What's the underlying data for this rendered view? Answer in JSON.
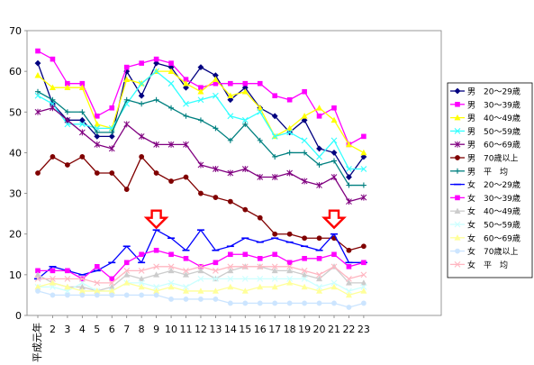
{
  "chart_data": {
    "type": "line",
    "x": [
      "平成元年",
      "2",
      "3",
      "4",
      "5",
      "6",
      "7",
      "8",
      "9",
      "10",
      "11",
      "12",
      "13",
      "14",
      "15",
      "16",
      "17",
      "18",
      "19",
      "20",
      "21",
      "22",
      "23"
    ],
    "ylim": [
      0,
      70
    ],
    "yticks": [
      0,
      10,
      20,
      30,
      40,
      50,
      60,
      70
    ],
    "grid": false,
    "legend_position": "right",
    "series": [
      {
        "name": "男　20～29歳",
        "color": "#000080",
        "marker": "diamond",
        "values": [
          62,
          52,
          48,
          48,
          44,
          44,
          60,
          54,
          62,
          61,
          56,
          61,
          59,
          53,
          56,
          51,
          49,
          45,
          48,
          41,
          40,
          34,
          39
        ]
      },
      {
        "name": "男　30～39歳",
        "color": "#ff00ff",
        "marker": "square",
        "values": [
          65,
          63,
          57,
          57,
          49,
          51,
          61,
          62,
          63,
          62,
          58,
          56,
          57,
          57,
          57,
          57,
          54,
          53,
          55,
          49,
          51,
          42,
          44
        ]
      },
      {
        "name": "男　40～49歳",
        "color": "#ffff00",
        "marker": "triangle",
        "values": [
          59,
          56,
          56,
          56,
          47,
          46,
          58,
          57,
          60,
          60,
          57,
          55,
          58,
          54,
          55,
          51,
          44,
          46,
          49,
          51,
          48,
          42,
          40
        ]
      },
      {
        "name": "男　50～59歳",
        "color": "#33ffff",
        "marker": "x",
        "values": [
          54,
          52,
          47,
          47,
          46,
          46,
          52,
          57,
          60,
          57,
          52,
          53,
          54,
          49,
          48,
          50,
          44,
          45,
          43,
          39,
          43,
          36,
          36
        ]
      },
      {
        "name": "男　60～69歳",
        "color": "#800080",
        "marker": "star",
        "values": [
          50,
          51,
          48,
          45,
          42,
          41,
          47,
          44,
          42,
          42,
          42,
          37,
          36,
          35,
          36,
          34,
          34,
          35,
          33,
          32,
          34,
          28,
          29
        ]
      },
      {
        "name": "男　70歳以上",
        "color": "#800000",
        "marker": "circle",
        "values": [
          35,
          39,
          37,
          39,
          35,
          35,
          31,
          39,
          35,
          33,
          34,
          30,
          29,
          28,
          26,
          24,
          20,
          20,
          19,
          19,
          19,
          16,
          17
        ]
      },
      {
        "name": "男　平　均",
        "color": "#008080",
        "marker": "plus",
        "values": [
          55,
          53,
          50,
          50,
          45,
          45,
          53,
          52,
          53,
          51,
          49,
          48,
          46,
          43,
          47,
          43,
          39,
          40,
          40,
          37,
          38,
          32,
          32
        ]
      },
      {
        "name": "女　20～29歳",
        "color": "#0000ff",
        "marker": "dash",
        "values": [
          9,
          12,
          11,
          10,
          11,
          13,
          17,
          13,
          21,
          19,
          16,
          21,
          16,
          17,
          19,
          18,
          19,
          18,
          17,
          16,
          20,
          13,
          13
        ]
      },
      {
        "name": "女　30～39歳",
        "color": "#ff00ff",
        "marker": "square",
        "values": [
          11,
          11,
          11,
          9,
          12,
          9,
          13,
          15,
          16,
          15,
          14,
          12,
          13,
          15,
          15,
          14,
          15,
          13,
          14,
          14,
          15,
          12,
          13
        ]
      },
      {
        "name": "女　40～49歳",
        "color": "#cccccc",
        "marker": "triangle",
        "values": [
          10,
          8,
          7,
          7,
          6,
          7,
          10,
          9,
          10,
          11,
          10,
          11,
          9,
          11,
          12,
          12,
          11,
          11,
          10,
          9,
          12,
          8,
          8
        ]
      },
      {
        "name": "女　50～59歳",
        "color": "#ccffff",
        "marker": "x",
        "values": [
          7,
          7,
          6,
          8,
          6,
          6,
          8,
          8,
          7,
          8,
          7,
          9,
          9,
          9,
          9,
          9,
          9,
          9,
          9,
          7,
          8,
          6,
          7
        ]
      },
      {
        "name": "女　60～69歳",
        "color": "#ffff99",
        "marker": "triangle",
        "values": [
          7,
          8,
          7,
          6,
          6,
          6,
          8,
          7,
          6,
          7,
          6,
          6,
          6,
          7,
          6,
          7,
          7,
          8,
          7,
          6,
          7,
          5,
          6
        ]
      },
      {
        "name": "女　70歳以上",
        "color": "#cce5ff",
        "marker": "circle",
        "values": [
          6,
          5,
          5,
          5,
          5,
          5,
          5,
          5,
          5,
          4,
          4,
          4,
          4,
          3,
          3,
          3,
          3,
          3,
          3,
          3,
          3,
          2,
          3
        ]
      },
      {
        "name": "女　平　均",
        "color": "#ffb6c1",
        "marker": "x",
        "values": [
          9,
          9,
          9,
          9,
          8,
          8,
          11,
          11,
          12,
          12,
          11,
          12,
          11,
          12,
          12,
          12,
          12,
          12,
          11,
          10,
          12,
          9,
          10
        ]
      }
    ],
    "annotations": [
      {
        "type": "arrow-down",
        "x": "9",
        "y": 24,
        "color": "#ff0000"
      },
      {
        "type": "arrow-down",
        "x": "21",
        "y": 24,
        "color": "#ff0000"
      }
    ]
  }
}
